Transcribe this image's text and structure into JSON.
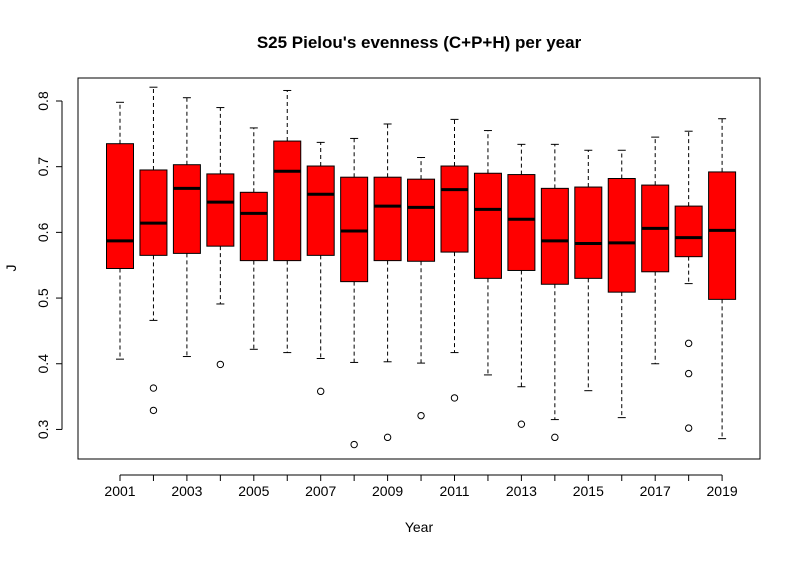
{
  "chart_data": {
    "type": "boxplot",
    "title": "S25 Pielou's evenness (C+P+H) per year",
    "xlabel": "Year",
    "ylabel": "J",
    "ylim": [
      0.255,
      0.835
    ],
    "y_ticks": [
      "0.3",
      "0.4",
      "0.5",
      "0.6",
      "0.7",
      "0.8"
    ],
    "x_tick_labels": [
      "2001",
      "2003",
      "2005",
      "2007",
      "2009",
      "2011",
      "2013",
      "2015",
      "2017",
      "2019"
    ],
    "box_color": "#ff0000",
    "categories": [
      "2001",
      "2002",
      "2003",
      "2004",
      "2005",
      "2006",
      "2007",
      "2008",
      "2009",
      "2010",
      "2011",
      "2012",
      "2013",
      "2014",
      "2015",
      "2016",
      "2017",
      "2018",
      "2019"
    ],
    "boxes": [
      {
        "year": "2001",
        "whisker_low": 0.407,
        "q1": 0.545,
        "median": 0.587,
        "q3": 0.735,
        "whisker_high": 0.798,
        "outliers": []
      },
      {
        "year": "2002",
        "whisker_low": 0.466,
        "q1": 0.565,
        "median": 0.614,
        "q3": 0.695,
        "whisker_high": 0.821,
        "outliers": [
          0.363,
          0.329
        ]
      },
      {
        "year": "2003",
        "whisker_low": 0.411,
        "q1": 0.568,
        "median": 0.667,
        "q3": 0.703,
        "whisker_high": 0.805,
        "outliers": []
      },
      {
        "year": "2004",
        "whisker_low": 0.491,
        "q1": 0.579,
        "median": 0.646,
        "q3": 0.689,
        "whisker_high": 0.79,
        "outliers": [
          0.399
        ]
      },
      {
        "year": "2005",
        "whisker_low": 0.422,
        "q1": 0.557,
        "median": 0.629,
        "q3": 0.661,
        "whisker_high": 0.759,
        "outliers": []
      },
      {
        "year": "2006",
        "whisker_low": 0.417,
        "q1": 0.557,
        "median": 0.693,
        "q3": 0.739,
        "whisker_high": 0.816,
        "outliers": []
      },
      {
        "year": "2007",
        "whisker_low": 0.408,
        "q1": 0.565,
        "median": 0.658,
        "q3": 0.701,
        "whisker_high": 0.737,
        "outliers": [
          0.358
        ]
      },
      {
        "year": "2008",
        "whisker_low": 0.402,
        "q1": 0.525,
        "median": 0.602,
        "q3": 0.684,
        "whisker_high": 0.743,
        "outliers": [
          0.277
        ]
      },
      {
        "year": "2009",
        "whisker_low": 0.403,
        "q1": 0.557,
        "median": 0.64,
        "q3": 0.684,
        "whisker_high": 0.765,
        "outliers": [
          0.288
        ]
      },
      {
        "year": "2010",
        "whisker_low": 0.401,
        "q1": 0.556,
        "median": 0.638,
        "q3": 0.681,
        "whisker_high": 0.714,
        "outliers": [
          0.321
        ]
      },
      {
        "year": "2011",
        "whisker_low": 0.417,
        "q1": 0.57,
        "median": 0.665,
        "q3": 0.701,
        "whisker_high": 0.772,
        "outliers": [
          0.348
        ]
      },
      {
        "year": "2012",
        "whisker_low": 0.383,
        "q1": 0.53,
        "median": 0.635,
        "q3": 0.69,
        "whisker_high": 0.755,
        "outliers": []
      },
      {
        "year": "2013",
        "whisker_low": 0.365,
        "q1": 0.542,
        "median": 0.62,
        "q3": 0.688,
        "whisker_high": 0.734,
        "outliers": [
          0.308
        ]
      },
      {
        "year": "2014",
        "whisker_low": 0.315,
        "q1": 0.521,
        "median": 0.587,
        "q3": 0.667,
        "whisker_high": 0.734,
        "outliers": [
          0.288
        ]
      },
      {
        "year": "2015",
        "whisker_low": 0.359,
        "q1": 0.53,
        "median": 0.583,
        "q3": 0.669,
        "whisker_high": 0.725,
        "outliers": []
      },
      {
        "year": "2016",
        "whisker_low": 0.318,
        "q1": 0.509,
        "median": 0.584,
        "q3": 0.682,
        "whisker_high": 0.725,
        "outliers": []
      },
      {
        "year": "2017",
        "whisker_low": 0.4,
        "q1": 0.54,
        "median": 0.606,
        "q3": 0.672,
        "whisker_high": 0.745,
        "outliers": []
      },
      {
        "year": "2018",
        "whisker_low": 0.522,
        "q1": 0.563,
        "median": 0.592,
        "q3": 0.64,
        "whisker_high": 0.754,
        "outliers": [
          0.431,
          0.385,
          0.302
        ]
      },
      {
        "year": "2019",
        "whisker_low": 0.286,
        "q1": 0.498,
        "median": 0.603,
        "q3": 0.692,
        "whisker_high": 0.773,
        "outliers": []
      }
    ]
  }
}
